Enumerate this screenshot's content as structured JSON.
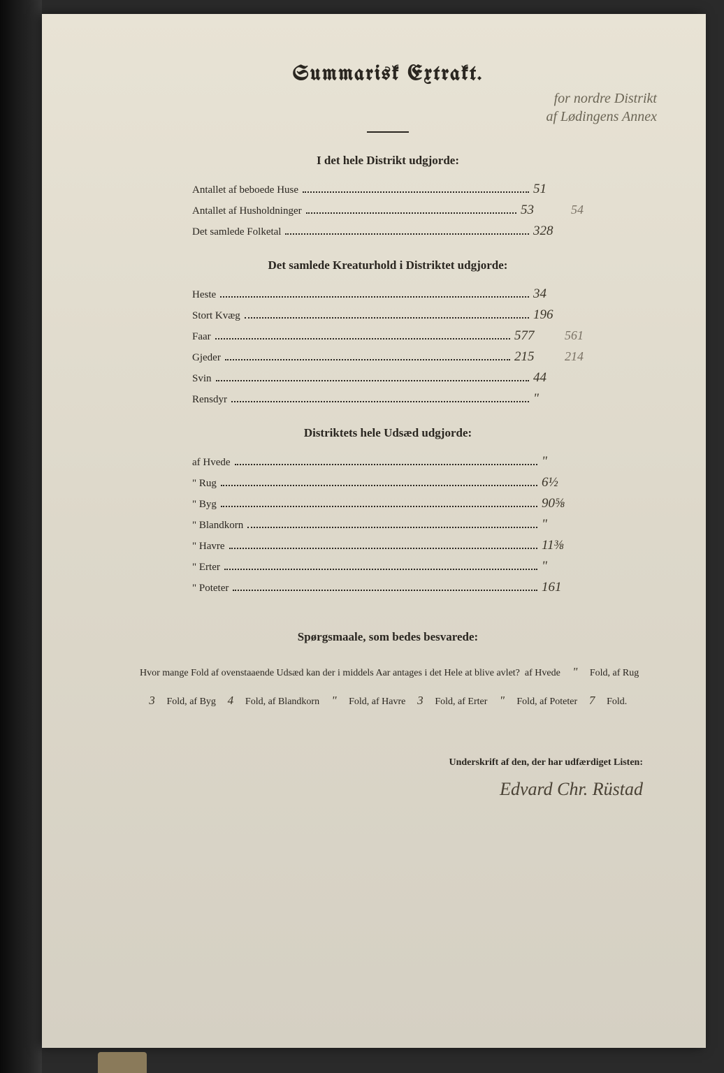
{
  "title": "Summarisk Extrakt.",
  "title_annotation_line1": "for nordre Distrikt",
  "title_annotation_line2": "af Lødingens Annex",
  "section1": {
    "heading": "I det hele Distrikt udgjorde:",
    "rows": [
      {
        "label": "Antallet af beboede Huse",
        "value": "51",
        "note": ""
      },
      {
        "label": "Antallet af Husholdninger",
        "value": "53",
        "note": "54"
      },
      {
        "label": "Det samlede Folketal",
        "value": "328",
        "note": ""
      }
    ]
  },
  "section2": {
    "heading": "Det samlede Kreaturhold i Distriktet udgjorde:",
    "rows": [
      {
        "label": "Heste",
        "value": "34",
        "note": ""
      },
      {
        "label": "Stort Kvæg",
        "value": "196",
        "note": ""
      },
      {
        "label": "Faar",
        "value": "577",
        "note": "561"
      },
      {
        "label": "Gjeder",
        "value": "215",
        "note": "214"
      },
      {
        "label": "Svin",
        "value": "44",
        "note": ""
      },
      {
        "label": "Rensdyr",
        "value": "\"",
        "note": ""
      }
    ]
  },
  "section3": {
    "heading": "Distriktets hele Udsæd udgjorde:",
    "rows": [
      {
        "label": "af Hvede",
        "value": "\"",
        "note": ""
      },
      {
        "label": "\" Rug",
        "value": "6½",
        "note": ""
      },
      {
        "label": "\" Byg",
        "value": "90⅝",
        "note": ""
      },
      {
        "label": "\" Blandkorn",
        "value": "\"",
        "note": ""
      },
      {
        "label": "\" Havre",
        "value": "11⅜",
        "note": ""
      },
      {
        "label": "\" Erter",
        "value": "\"",
        "note": ""
      },
      {
        "label": "\" Poteter",
        "value": "161",
        "note": ""
      }
    ]
  },
  "question": {
    "heading": "Spørgsmaale, som bedes besvarede:",
    "intro": "Hvor mange Fold af ovenstaaende Udsæd kan der i middels Aar antages i det Hele at blive avlet?",
    "parts": [
      {
        "label": "af Hvede",
        "value": "\"",
        "suffix": "Fold,"
      },
      {
        "label": "af Rug",
        "value": "3",
        "suffix": "Fold,"
      },
      {
        "label": "af Byg",
        "value": "4",
        "suffix": "Fold,"
      },
      {
        "label": "af Blandkorn",
        "value": "\"",
        "suffix": "Fold,"
      },
      {
        "label": "af Havre",
        "value": "3",
        "suffix": "Fold,"
      },
      {
        "label": "af Erter",
        "value": "\"",
        "suffix": "Fold,"
      },
      {
        "label": "af Poteter",
        "value": "7",
        "suffix": "Fold."
      }
    ]
  },
  "signature": {
    "label": "Underskrift af den, der har udfærdiget Listen:",
    "name": "Edvard Chr. Rüstad"
  }
}
